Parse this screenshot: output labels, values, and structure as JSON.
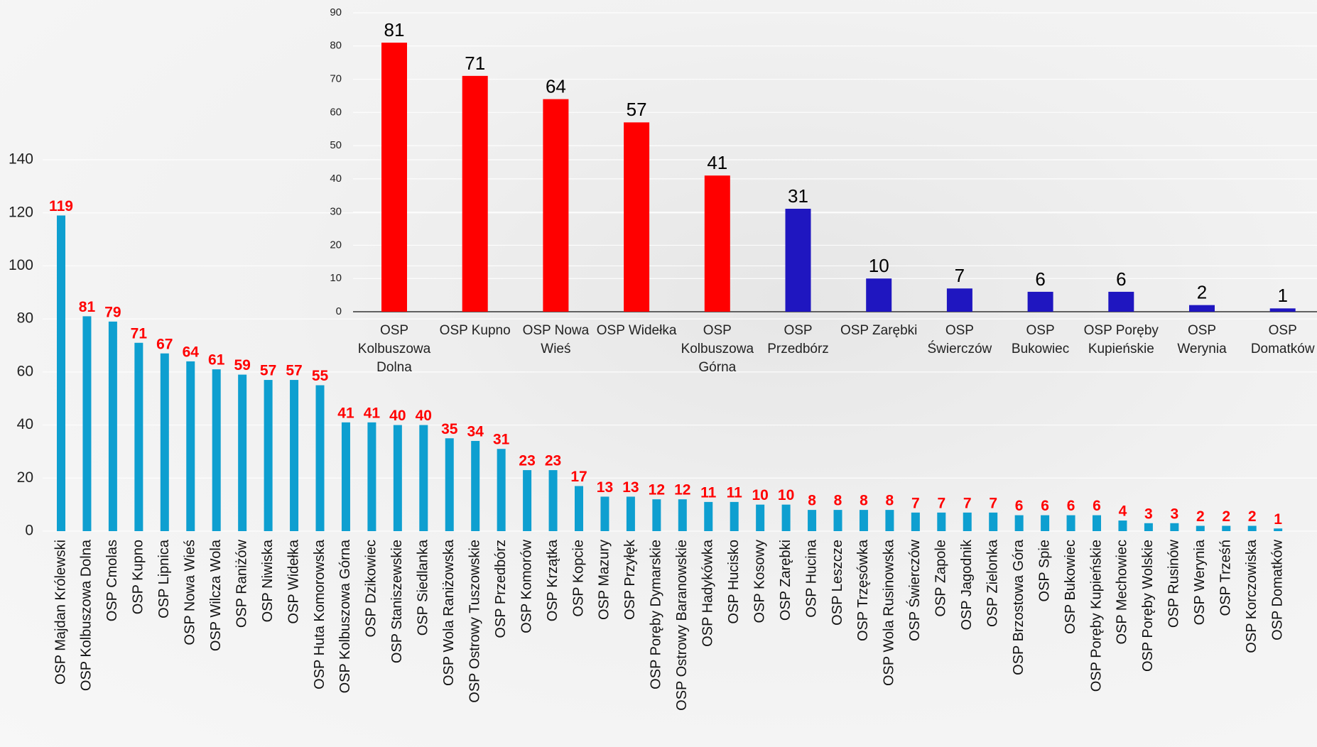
{
  "chart_data": [
    {
      "type": "bar",
      "categories": [
        "OSP Majdan Królewski",
        "OSP Kolbuszowa Dolna",
        "OSP Cmolas",
        "OSP Kupno",
        "OSP Lipnica",
        "OSP Nowa Wieś",
        "OSP Wilcza Wola",
        "OSP Raniżów",
        "OSP Niwiska",
        "OSP Widełka",
        "OSP Huta Komorowska",
        "OSP Kolbuszowa Górna",
        "OSP Dzikowiec",
        "OSP Staniszewskie",
        "OSP Siedlanka",
        "OSP Wola Raniżowska",
        "OSP Ostrowy Tuszowskie",
        "OSP Przedbórz",
        "OSP Komorów",
        "OSP Krzątka",
        "OSP Kopcie",
        "OSP Mazury",
        "OSP Przyłęk",
        "OSP Poręby Dymarskie",
        "OSP Ostrowy Baranowskie",
        "OSP Hadykówka",
        "OSP Hucisko",
        "OSP Kosowy",
        "OSP Zarębki",
        "OSP Hucina",
        "OSP Leszcze",
        "OSP Trzęsówka",
        "OSP Wola Rusinowska",
        "OSP Świerczów",
        "OSP Zapole",
        "OSP Jagodnik",
        "OSP Zielonka",
        "OSP Brzostowa Góra",
        "OSP Spie",
        "OSP Bukowiec",
        "OSP Poręby Kupieńskie",
        "OSP Mechowiec",
        "OSP Poręby Wolskie",
        "OSP Rusinów",
        "OSP Werynia",
        "OSP Trześń",
        "OSP Korczowiska",
        "OSP Domatków"
      ],
      "values": [
        119,
        81,
        79,
        71,
        67,
        64,
        61,
        59,
        57,
        57,
        55,
        41,
        41,
        40,
        40,
        35,
        34,
        31,
        23,
        23,
        17,
        13,
        13,
        12,
        12,
        11,
        11,
        10,
        10,
        8,
        8,
        8,
        8,
        7,
        7,
        7,
        7,
        6,
        6,
        6,
        6,
        4,
        3,
        3,
        2,
        2,
        2,
        1
      ],
      "color": "#0e9fd0",
      "value_label_color": "#ff0000",
      "ylim": [
        0,
        140
      ],
      "yticks": [
        0,
        20,
        40,
        60,
        80,
        100,
        120,
        140
      ],
      "grid": true
    },
    {
      "type": "bar",
      "categories": [
        "OSP Kolbuszowa Dolna",
        "OSP Kupno",
        "OSP Nowa Wieś",
        "OSP Widełka",
        "OSP Kolbuszowa Górna",
        "OSP Przedbórz",
        "OSP Zarębki",
        "OSP Świerczów",
        "OSP Bukowiec",
        "OSP Poręby Kupieńskie",
        "OSP Werynia",
        "OSP Domatków"
      ],
      "values": [
        81,
        71,
        64,
        57,
        41,
        31,
        10,
        7,
        6,
        6,
        2,
        1
      ],
      "colors": [
        "#ff0000",
        "#ff0000",
        "#ff0000",
        "#ff0000",
        "#ff0000",
        "#1f16c0",
        "#1f16c0",
        "#1f16c0",
        "#1f16c0",
        "#1f16c0",
        "#1f16c0",
        "#1f16c0"
      ],
      "value_label_color": "#000000",
      "ylim": [
        0,
        90
      ],
      "yticks": [
        0,
        10,
        20,
        30,
        40,
        50,
        60,
        70,
        80,
        90
      ],
      "grid": true
    }
  ]
}
